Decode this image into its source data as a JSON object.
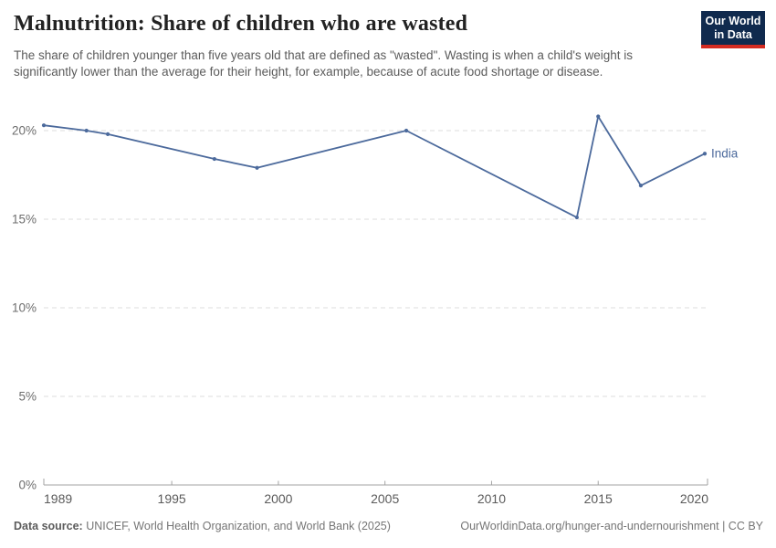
{
  "header": {
    "title": "Malnutrition: Share of children who are wasted",
    "subtitle": "The share of children younger than five years old that are defined as \"wasted\". Wasting is when a child's weight is significantly lower than the average for their height, for example, because of acute food shortage or disease.",
    "logo": {
      "line1": "Our World",
      "line2": "in Data"
    }
  },
  "chart_data": {
    "type": "line",
    "title": "Malnutrition: Share of children who are wasted",
    "entity": "India",
    "series": [
      {
        "name": "India",
        "color": "#4c6a9c",
        "x": [
          1989,
          1991,
          1992,
          1997,
          1999,
          2006,
          2014,
          2015,
          2017,
          2020
        ],
        "values": [
          20.3,
          20,
          19.8,
          18.4,
          17.9,
          20,
          15.1,
          20.8,
          16.9,
          18.7
        ]
      }
    ],
    "xlabel": "",
    "ylabel": "",
    "unit": "%",
    "xlim": [
      1989,
      2020
    ],
    "ylim": [
      0,
      21.5
    ],
    "xticks": [
      1989,
      1995,
      2000,
      2005,
      2010,
      2015,
      2020
    ],
    "yticks": [
      0,
      5,
      10,
      15,
      20
    ],
    "ytick_suffix": "%",
    "grid": "horizontal-dashed",
    "legend_position": "line-end-label"
  },
  "colors": {
    "line": "#4c6a9c",
    "gridline": "#dcdcdc",
    "axis": "#a3a3a3",
    "ytick_label": "#6e6e6e",
    "xtick_label": "#5b5b5b",
    "logo_bg": "#102a4e",
    "logo_stripe": "#d42b21"
  },
  "footer": {
    "datasource_label": "Data source:",
    "datasource_text": " UNICEF, World Health Organization, and World Bank (2025)",
    "link_text": "OurWorldinData.org/hunger-and-undernourishment | CC BY"
  }
}
